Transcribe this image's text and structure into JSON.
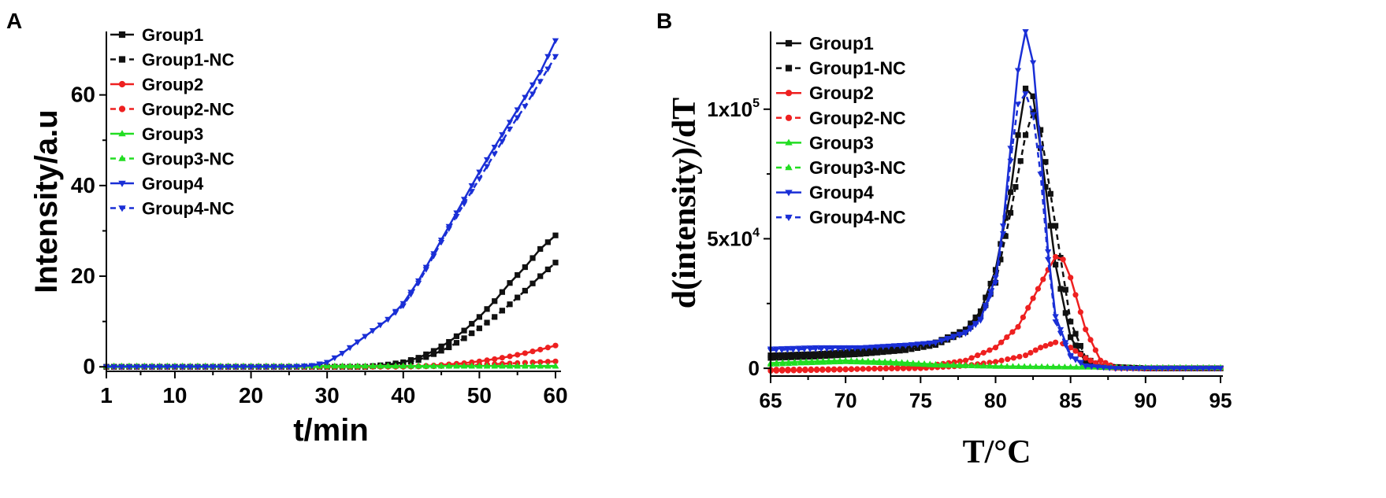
{
  "panels": {
    "a_label": "A",
    "b_label": "B"
  },
  "colors": {
    "group1": "#111111",
    "group2": "#ee2020",
    "group3": "#22dd22",
    "group4": "#1a2fd6"
  },
  "chart_data": [
    {
      "type": "line",
      "panel": "A",
      "xlabel": "t/min",
      "ylabel": "Intensity/a.u",
      "xlim": [
        1,
        60
      ],
      "ylim": [
        -1,
        74
      ],
      "xticks": [
        1,
        10,
        20,
        30,
        40,
        50,
        60
      ],
      "yticks": [
        0,
        20,
        40,
        60
      ],
      "legend_position": "top-left",
      "series": [
        {
          "name": "Group1",
          "color_key": "group1",
          "marker": "square",
          "dash": false,
          "points": [
            [
              1,
              0
            ],
            [
              20,
              0
            ],
            [
              35,
              0
            ],
            [
              38,
              0.5
            ],
            [
              40,
              1
            ],
            [
              42,
              2
            ],
            [
              44,
              3.5
            ],
            [
              46,
              5.5
            ],
            [
              48,
              8
            ],
            [
              50,
              11
            ],
            [
              52,
              14.5
            ],
            [
              54,
              18.5
            ],
            [
              56,
              22
            ],
            [
              58,
              26
            ],
            [
              60,
              29
            ]
          ]
        },
        {
          "name": "Group1-NC",
          "color_key": "group1",
          "marker": "square",
          "dash": true,
          "points": [
            [
              1,
              0
            ],
            [
              20,
              0
            ],
            [
              35,
              0
            ],
            [
              38,
              0.3
            ],
            [
              40,
              0.8
            ],
            [
              42,
              1.5
            ],
            [
              44,
              2.8
            ],
            [
              46,
              4.3
            ],
            [
              48,
              6.3
            ],
            [
              50,
              8.5
            ],
            [
              52,
              11
            ],
            [
              54,
              13.8
            ],
            [
              56,
              16.8
            ],
            [
              58,
              20
            ],
            [
              60,
              23
            ]
          ]
        },
        {
          "name": "Group2",
          "color_key": "group2",
          "marker": "circle",
          "dash": false,
          "points": [
            [
              1,
              0
            ],
            [
              40,
              0
            ],
            [
              44,
              0.3
            ],
            [
              48,
              0.8
            ],
            [
              50,
              1.2
            ],
            [
              52,
              1.7
            ],
            [
              54,
              2.3
            ],
            [
              56,
              3
            ],
            [
              58,
              3.8
            ],
            [
              60,
              4.7
            ]
          ]
        },
        {
          "name": "Group2-NC",
          "color_key": "group2",
          "marker": "circle",
          "dash": true,
          "points": [
            [
              1,
              0
            ],
            [
              40,
              0
            ],
            [
              44,
              0.1
            ],
            [
              48,
              0.3
            ],
            [
              52,
              0.6
            ],
            [
              56,
              0.9
            ],
            [
              60,
              1.2
            ]
          ]
        },
        {
          "name": "Group3",
          "color_key": "group3",
          "marker": "triangle-up",
          "dash": false,
          "points": [
            [
              1,
              0.2
            ],
            [
              20,
              0.2
            ],
            [
              40,
              0.2
            ],
            [
              60,
              0.2
            ]
          ]
        },
        {
          "name": "Group3-NC",
          "color_key": "group3",
          "marker": "triangle-up",
          "dash": true,
          "points": [
            [
              1,
              0.1
            ],
            [
              20,
              0.1
            ],
            [
              40,
              0.1
            ],
            [
              60,
              0.1
            ]
          ]
        },
        {
          "name": "Group4",
          "color_key": "group4",
          "marker": "triangle-down",
          "dash": false,
          "points": [
            [
              1,
              0
            ],
            [
              25,
              0
            ],
            [
              28,
              0.3
            ],
            [
              30,
              1
            ],
            [
              32,
              3
            ],
            [
              34,
              5.5
            ],
            [
              36,
              8
            ],
            [
              38,
              10.5
            ],
            [
              40,
              14
            ],
            [
              42,
              19
            ],
            [
              44,
              25
            ],
            [
              46,
              31
            ],
            [
              48,
              37
            ],
            [
              50,
              43
            ],
            [
              52,
              48.5
            ],
            [
              54,
              54
            ],
            [
              56,
              59.5
            ],
            [
              58,
              65
            ],
            [
              60,
              72
            ]
          ]
        },
        {
          "name": "Group4-NC",
          "color_key": "group4",
          "marker": "triangle-down",
          "dash": true,
          "points": [
            [
              1,
              0
            ],
            [
              25,
              0
            ],
            [
              28,
              0.3
            ],
            [
              30,
              1
            ],
            [
              32,
              3
            ],
            [
              34,
              5.5
            ],
            [
              36,
              8
            ],
            [
              38,
              10.5
            ],
            [
              40,
              13.5
            ],
            [
              42,
              18.5
            ],
            [
              44,
              24.5
            ],
            [
              46,
              30.5
            ],
            [
              48,
              36
            ],
            [
              50,
              41.5
            ],
            [
              52,
              47
            ],
            [
              54,
              52.5
            ],
            [
              56,
              57.5
            ],
            [
              58,
              63
            ],
            [
              60,
              68.5
            ]
          ]
        }
      ]
    },
    {
      "type": "line",
      "panel": "B",
      "xlabel": "T/°C",
      "ylabel": "d(intensity)/dT",
      "xlim": [
        65,
        95
      ],
      "ylim": [
        -3000,
        130000
      ],
      "xticks": [
        65,
        70,
        75,
        80,
        85,
        90,
        95
      ],
      "yticks": [
        {
          "value": 0,
          "label": "0"
        },
        {
          "value": 50000,
          "label": "5x10",
          "exp": "4"
        },
        {
          "value": 100000,
          "label": "1x10",
          "exp": "5"
        }
      ],
      "legend_position": "top-left",
      "series": [
        {
          "name": "Group1",
          "color_key": "group1",
          "marker": "square",
          "dash": false,
          "points": [
            [
              65,
              5000
            ],
            [
              68,
              5500
            ],
            [
              71,
              6500
            ],
            [
              74,
              8000
            ],
            [
              76,
              10000
            ],
            [
              78,
              15000
            ],
            [
              79,
              22000
            ],
            [
              80,
              38000
            ],
            [
              81,
              68000
            ],
            [
              81.5,
              90000
            ],
            [
              82,
              108000
            ],
            [
              82.5,
              105000
            ],
            [
              83,
              85000
            ],
            [
              84,
              40000
            ],
            [
              85,
              12000
            ],
            [
              86,
              2500
            ],
            [
              87,
              500
            ],
            [
              90,
              0
            ],
            [
              95,
              0
            ]
          ]
        },
        {
          "name": "Group1-NC",
          "color_key": "group1",
          "marker": "square",
          "dash": true,
          "points": [
            [
              65,
              4000
            ],
            [
              68,
              4500
            ],
            [
              71,
              5500
            ],
            [
              74,
              7000
            ],
            [
              76,
              9000
            ],
            [
              78,
              14000
            ],
            [
              79,
              20000
            ],
            [
              80,
              33000
            ],
            [
              81,
              60000
            ],
            [
              82,
              90000
            ],
            [
              82.5,
              99000
            ],
            [
              83,
              92000
            ],
            [
              84,
              55000
            ],
            [
              85,
              18000
            ],
            [
              86,
              4000
            ],
            [
              87,
              800
            ],
            [
              90,
              0
            ],
            [
              95,
              0
            ]
          ]
        },
        {
          "name": "Group2",
          "color_key": "group2",
          "marker": "circle",
          "dash": false,
          "points": [
            [
              65,
              -1000
            ],
            [
              70,
              -500
            ],
            [
              75,
              500
            ],
            [
              78,
              3000
            ],
            [
              80,
              8000
            ],
            [
              81.5,
              16000
            ],
            [
              82.5,
              27000
            ],
            [
              83.5,
              38000
            ],
            [
              84,
              43000
            ],
            [
              84.5,
              42000
            ],
            [
              85,
              35000
            ],
            [
              86,
              15000
            ],
            [
              87,
              3000
            ],
            [
              88,
              300
            ],
            [
              90,
              0
            ],
            [
              95,
              0
            ]
          ]
        },
        {
          "name": "Group2-NC",
          "color_key": "group2",
          "marker": "circle",
          "dash": true,
          "points": [
            [
              65,
              -500
            ],
            [
              70,
              -300
            ],
            [
              75,
              0
            ],
            [
              78,
              1000
            ],
            [
              80,
              2500
            ],
            [
              82,
              5000
            ],
            [
              83,
              8000
            ],
            [
              84,
              10000
            ],
            [
              84.5,
              9500
            ],
            [
              85,
              8000
            ],
            [
              86,
              4000
            ],
            [
              87,
              1000
            ],
            [
              88,
              0
            ],
            [
              95,
              0
            ]
          ]
        },
        {
          "name": "Group3",
          "color_key": "group3",
          "marker": "triangle-up",
          "dash": false,
          "points": [
            [
              65,
              2000
            ],
            [
              67,
              2500
            ],
            [
              70,
              3000
            ],
            [
              73,
              2500
            ],
            [
              76,
              1500
            ],
            [
              80,
              800
            ],
            [
              85,
              500
            ],
            [
              90,
              300
            ],
            [
              95,
              300
            ]
          ]
        },
        {
          "name": "Group3-NC",
          "color_key": "group3",
          "marker": "triangle-up",
          "dash": true,
          "points": [
            [
              65,
              1500
            ],
            [
              67,
              2000
            ],
            [
              70,
              2500
            ],
            [
              73,
              2000
            ],
            [
              76,
              1200
            ],
            [
              80,
              700
            ],
            [
              85,
              400
            ],
            [
              90,
              300
            ],
            [
              95,
              200
            ]
          ]
        },
        {
          "name": "Group4",
          "color_key": "group4",
          "marker": "triangle-down",
          "dash": false,
          "points": [
            [
              65,
              7500
            ],
            [
              68,
              8000
            ],
            [
              71,
              8000
            ],
            [
              74,
              9000
            ],
            [
              76,
              10000
            ],
            [
              78,
              14000
            ],
            [
              79,
              19000
            ],
            [
              80,
              35000
            ],
            [
              80.5,
              55000
            ],
            [
              81,
              85000
            ],
            [
              81.5,
              115000
            ],
            [
              82,
              130000
            ],
            [
              82.5,
              118000
            ],
            [
              83,
              85000
            ],
            [
              83.5,
              45000
            ],
            [
              84,
              20000
            ],
            [
              85,
              5000
            ],
            [
              86,
              1000
            ],
            [
              88,
              0
            ],
            [
              95,
              0
            ]
          ]
        },
        {
          "name": "Group4-NC",
          "color_key": "group4",
          "marker": "triangle-down",
          "dash": true,
          "points": [
            [
              65,
              7000
            ],
            [
              68,
              7500
            ],
            [
              71,
              7800
            ],
            [
              74,
              8800
            ],
            [
              76,
              9800
            ],
            [
              78,
              13500
            ],
            [
              79,
              18500
            ],
            [
              80,
              33000
            ],
            [
              80.5,
              52000
            ],
            [
              81,
              80000
            ],
            [
              81.5,
              102000
            ],
            [
              82,
              106000
            ],
            [
              82.5,
              98000
            ],
            [
              83,
              75000
            ],
            [
              83.5,
              42000
            ],
            [
              84,
              18000
            ],
            [
              85,
              4500
            ],
            [
              86,
              900
            ],
            [
              88,
              0
            ],
            [
              95,
              0
            ]
          ]
        }
      ]
    }
  ]
}
